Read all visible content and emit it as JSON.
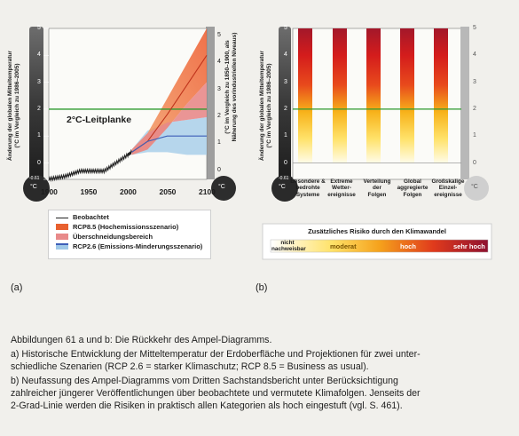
{
  "figure_a": {
    "panel_label": "(a)",
    "ylabel_left": "Änderung der globalen Mitteltemperatur\n(°C im Vergleich zu 1986–2005)",
    "ylabel_right": "(°C im Vergleich zu 1850–1900, als\nNäherung des vorindustriellen Niveaus)",
    "guardrail_label": "2°C-Leitplanke",
    "left_ticks": [
      "5",
      "4",
      "3",
      "2",
      "1",
      "0",
      "-0.61"
    ],
    "right_ticks": [
      "5",
      "4",
      "3",
      "2",
      "1",
      "0"
    ],
    "x_ticks": [
      "1900",
      "1950",
      "2000",
      "2050",
      "2100"
    ],
    "bulb_left": "°C",
    "bulb_right": "°C",
    "legend": [
      {
        "label": "Beobachtet",
        "color": "#222222"
      },
      {
        "label": "RCP8.5 (Hochemissionsszenario)",
        "color": "#e8602f"
      },
      {
        "label": "Überschneidungsbereich",
        "color": "#e88a8a"
      },
      {
        "label": "RCP2.6 (Emissions-Minderungsszenario)",
        "color": "#3d5fb8"
      }
    ]
  },
  "figure_b": {
    "panel_label": "(b)",
    "ylabel_left": "Änderung der globalen Mitteltemperatur\n(°C im Vergleich zu 1986–2005)",
    "left_ticks": [
      "5",
      "4",
      "3",
      "2",
      "1",
      "0",
      "-0.61"
    ],
    "right_ticks": [
      "5",
      "4",
      "3",
      "2",
      "1",
      "0"
    ],
    "categories": [
      "Besondere &\nbedrohte\nSysteme",
      "Extreme\nWetter-\nereignisse",
      "Verteilung\nder\nFolgen",
      "Global\naggregierte\nFolgen",
      "Großskalige\nEinzel-\nereignisse"
    ],
    "bulb_left": "°C",
    "bulb_right": "°C",
    "risk_title": "Zusätzliches Risiko durch den Klimawandel",
    "risk_levels": [
      "nicht\nnachweisbar",
      "moderat",
      "hoch",
      "sehr hoch"
    ]
  },
  "caption": {
    "title": "Abbildungen 61 a und b: Die Rückkehr des Ampel-Diagramms.",
    "line_a1": "a) Historische Entwicklung der Mitteltemperatur der Erdoberfläche und Projektionen für zwei unter-",
    "line_a2": "schiedliche Szenarien (RCP 2.6 = starker Klimaschutz; RCP 8.5 = Business as usual).",
    "line_b1": "b) Neufassung des Ampel-Diagramms vom Dritten Sachstandsbericht unter Berücksichtigung",
    "line_b2": "zahlreicher jüngerer Veröffentlichungen über beobachtete und vermutete Klimafolgen. Jenseits der",
    "line_b3": "2-Grad-Linie werden die Risiken in praktisch allen Kategorien als hoch eingestuft (vgl. S. 461)."
  },
  "chart_data": [
    {
      "type": "line",
      "title": "",
      "guardrail": 2,
      "xlim": [
        1900,
        2100
      ],
      "ylim": [
        -0.61,
        5
      ],
      "series": [
        {
          "name": "Beobachtet",
          "x": [
            1900,
            1910,
            1920,
            1930,
            1940,
            1950,
            1960,
            1970,
            1980,
            1990,
            2000,
            2005
          ],
          "y": [
            -0.6,
            -0.55,
            -0.5,
            -0.4,
            -0.3,
            -0.3,
            -0.3,
            -0.3,
            -0.1,
            0.1,
            0.3,
            0.4
          ]
        },
        {
          "name": "RCP8.5 (Hochemissionsszenario)",
          "x": [
            2005,
            2025,
            2050,
            2075,
            2100
          ],
          "y": [
            0.4,
            0.8,
            1.8,
            2.9,
            4.0
          ],
          "low": [
            0.3,
            0.5,
            1.3,
            2.2,
            3.0
          ],
          "high": [
            0.5,
            1.1,
            2.4,
            3.7,
            5.0
          ]
        },
        {
          "name": "RCP2.6 (Emissions-Minderungsszenario)",
          "x": [
            2005,
            2025,
            2050,
            2075,
            2100
          ],
          "y": [
            0.4,
            0.8,
            1.0,
            1.0,
            1.0
          ],
          "low": [
            0.3,
            0.4,
            0.4,
            0.3,
            0.3
          ],
          "high": [
            0.5,
            1.2,
            1.5,
            1.6,
            1.7
          ]
        }
      ]
    },
    {
      "type": "heatmap",
      "ylim": [
        -0.61,
        5
      ],
      "guardrail": 2,
      "categories": [
        "Besondere & bedrohte Systeme",
        "Extreme Wetter-ereignisse",
        "Verteilung der Folgen",
        "Global aggregierte Folgen",
        "Großskalige Einzel-ereignisse"
      ]
    }
  ]
}
